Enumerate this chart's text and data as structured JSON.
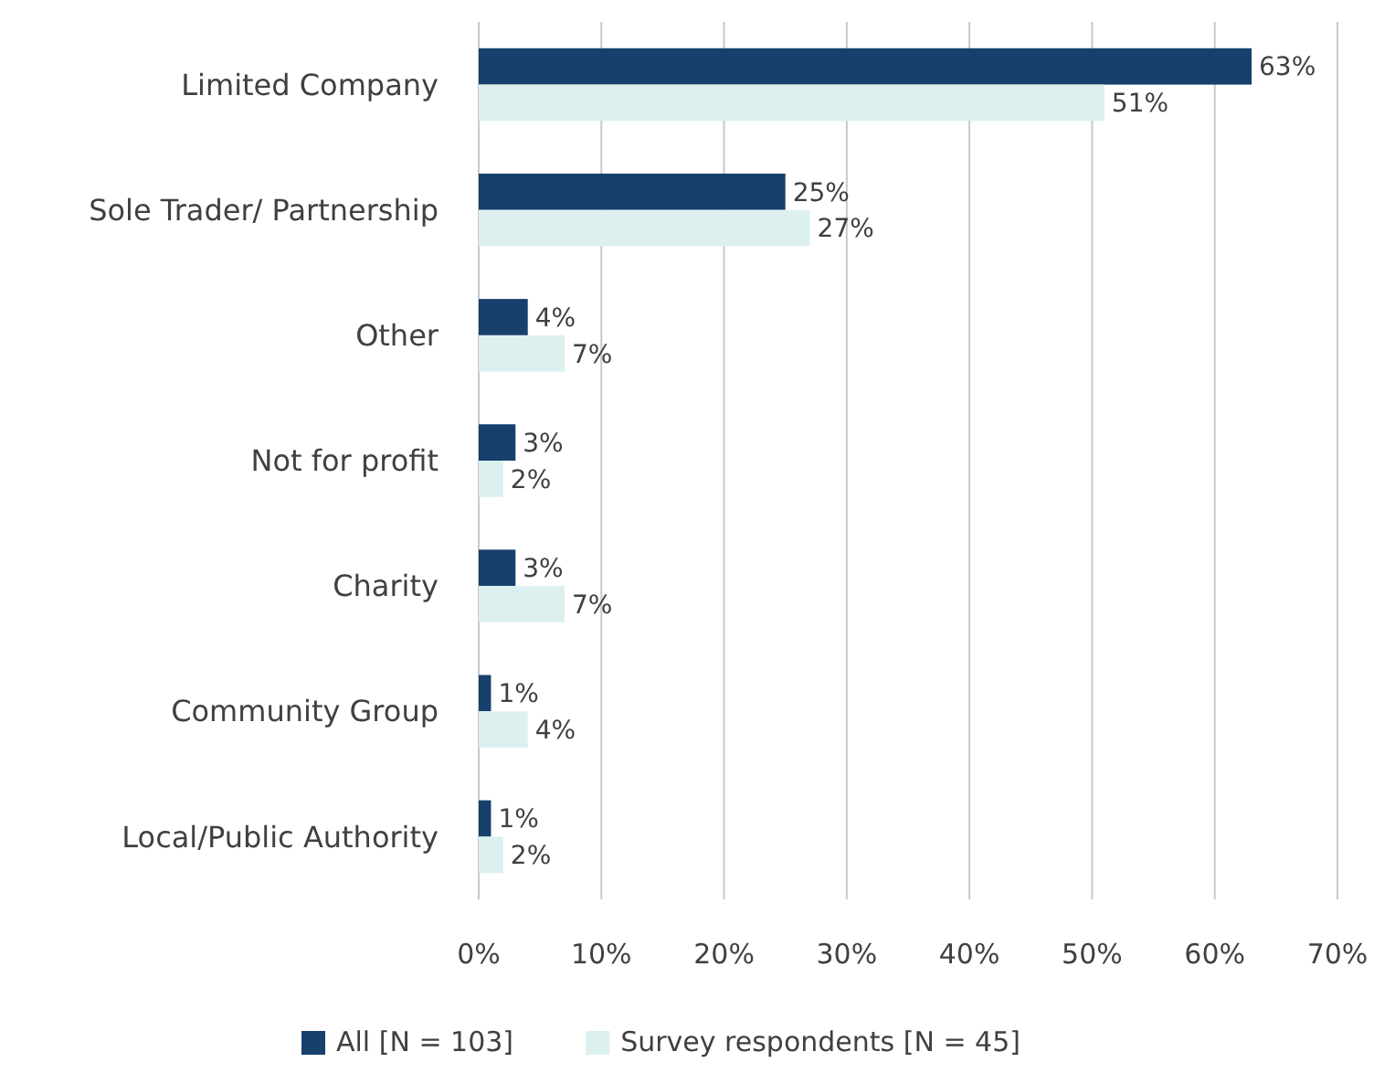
{
  "chart_data": {
    "type": "bar",
    "orientation": "horizontal",
    "categories": [
      "Limited Company",
      "Sole Trader/ Partnership",
      "Other",
      "Not for profit",
      "Charity",
      "Community Group",
      "Local/Public Authority"
    ],
    "series": [
      {
        "name": "All [N = 103]",
        "color": "#17406d",
        "values": [
          63,
          25,
          4,
          3,
          3,
          1,
          1
        ],
        "value_labels": [
          "63%",
          "25%",
          "4%",
          "3%",
          "3%",
          "1%",
          "1%"
        ]
      },
      {
        "name": "Survey respondents [N = 45]",
        "color": "#dcf0f0",
        "values": [
          51,
          27,
          7,
          2,
          7,
          4,
          2
        ],
        "value_labels": [
          "51%",
          "27%",
          "7%",
          "2%",
          "7%",
          "4%",
          "2%"
        ]
      }
    ],
    "xlim": [
      0,
      70
    ],
    "xticks": [
      {
        "value": 0,
        "label": "0%"
      },
      {
        "value": 10,
        "label": "10%"
      },
      {
        "value": 20,
        "label": "20%"
      },
      {
        "value": 30,
        "label": "30%"
      },
      {
        "value": 40,
        "label": "40%"
      },
      {
        "value": 50,
        "label": "50%"
      },
      {
        "value": 60,
        "label": "60%"
      },
      {
        "value": 70,
        "label": "70%"
      }
    ],
    "grid": "x",
    "legend": "bottom"
  }
}
